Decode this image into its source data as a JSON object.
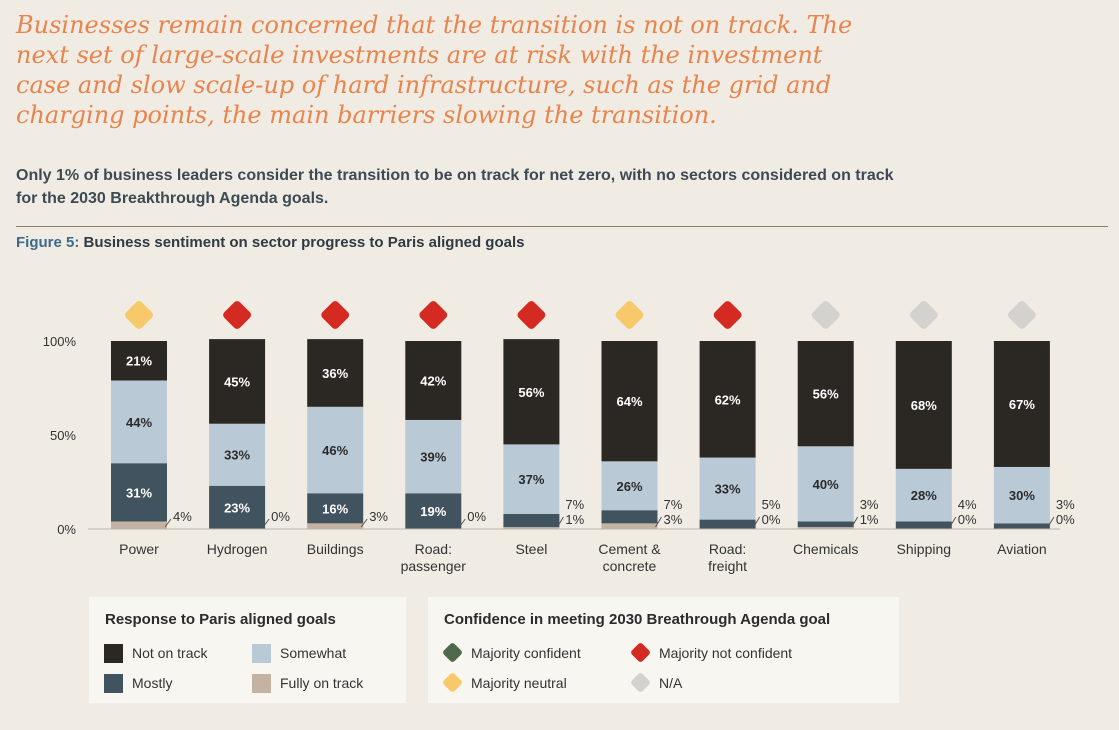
{
  "headline": "Businesses remain concerned that the transition is not on track. The next set of large-scale investments are at risk with the investment case and  slow scale-up of hard infrastructure, such as the grid and charging points, the main barriers slowing the transition.",
  "subtext": "Only 1% of business leaders consider the transition to be on track for net zero, with no sectors considered on track for the 2030 Breakthrough Agenda goals.",
  "figure": {
    "label": "Figure 5:",
    "title": "Business sentiment on sector progress to Paris aligned goals"
  },
  "colors": {
    "not_on_track": "#2b2723",
    "somewhat": "#b9c9d6",
    "mostly": "#41535f",
    "fully_on_track": "#c4b3a3",
    "confident": "#4e6a4a",
    "not_confident": "#d42a22",
    "neutral": "#f7c96b",
    "na": "#d4d2ce"
  },
  "chart_data": {
    "type": "bar",
    "stacked": true,
    "ylim": [
      0,
      100
    ],
    "yticks": [
      "0%",
      "50%",
      "100%"
    ],
    "categories": [
      [
        "Power"
      ],
      [
        "Hydrogen"
      ],
      [
        "Buildings"
      ],
      [
        "Road:",
        "passenger"
      ],
      [
        "Steel"
      ],
      [
        "Cement &",
        "concrete"
      ],
      [
        "Road:",
        "freight"
      ],
      [
        "Chemicals"
      ],
      [
        "Shipping"
      ],
      [
        "Aviation"
      ]
    ],
    "series": [
      {
        "name": "Fully on track",
        "key": "fully_on_track",
        "values": [
          4,
          0,
          3,
          0,
          1,
          3,
          0,
          1,
          0,
          0
        ]
      },
      {
        "name": "Mostly",
        "key": "mostly",
        "values": [
          31,
          23,
          16,
          19,
          7,
          7,
          5,
          3,
          4,
          3
        ]
      },
      {
        "name": "Somewhat",
        "key": "somewhat",
        "values": [
          44,
          33,
          46,
          39,
          37,
          26,
          33,
          40,
          28,
          30
        ]
      },
      {
        "name": "Not on track",
        "key": "not_on_track",
        "values": [
          21,
          45,
          36,
          42,
          56,
          64,
          62,
          56,
          68,
          67
        ]
      }
    ],
    "labels": {
      "fully_on_track": [
        "4%",
        "0%",
        "3%",
        "0%",
        "1%",
        "3%",
        "0%",
        "1%",
        "0%",
        "0%"
      ],
      "mostly": [
        "31%",
        "23%",
        "16%",
        "19%",
        "7%",
        "7%",
        "5%",
        "3%",
        "4%",
        "3%"
      ],
      "somewhat": [
        "44%",
        "33%",
        "46%",
        "39%",
        "37%",
        "26%",
        "33%",
        "40%",
        "28%",
        "30%"
      ],
      "not_on_track": [
        "21%",
        "45%",
        "36%",
        "42%",
        "56%",
        "64%",
        "62%",
        "56%",
        "68%",
        "67%"
      ]
    },
    "confidence": [
      "neutral",
      "not_confident",
      "not_confident",
      "not_confident",
      "not_confident",
      "neutral",
      "not_confident",
      "na",
      "na",
      "na"
    ]
  },
  "legend_response": {
    "title": "Response to Paris aligned goals",
    "items": [
      {
        "label": "Not on track",
        "key": "not_on_track"
      },
      {
        "label": "Somewhat",
        "key": "somewhat"
      },
      {
        "label": "Mostly",
        "key": "mostly"
      },
      {
        "label": "Fully on track",
        "key": "fully_on_track"
      }
    ]
  },
  "legend_confidence": {
    "title": "Confidence in meeting 2030 Breathrough Agenda goal",
    "items": [
      {
        "label": "Majority confident",
        "key": "confident"
      },
      {
        "label": "Majority not confident",
        "key": "not_confident"
      },
      {
        "label": "Majority neutral",
        "key": "neutral"
      },
      {
        "label": "N/A",
        "key": "na"
      }
    ]
  }
}
